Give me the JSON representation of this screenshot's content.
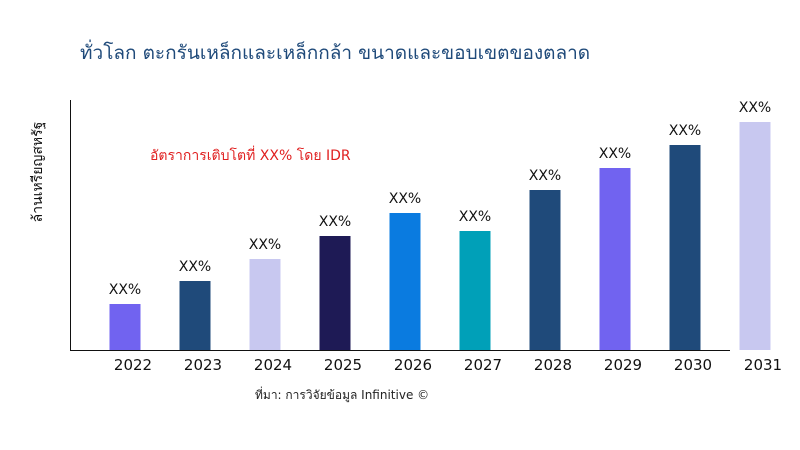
{
  "chart_data": {
    "type": "bar",
    "title": "ทั่วโลก ตะกรันเหล็กและเหล็กกล้า ขนาดและขอบเขตของตลาด",
    "ylabel": "ล้านเหรียญสหรัฐ",
    "xlabel": "",
    "annotation": "อัตราการเติบโตที่ XX% โดย IDR",
    "source": "ที่มา: การวิจัยข้อมูล Infinitive ©",
    "categories": [
      "2022",
      "2023",
      "2024",
      "2025",
      "2026",
      "2027",
      "2028",
      "2029",
      "2030",
      "2031"
    ],
    "values": [
      46,
      69,
      91,
      114,
      137,
      119,
      160,
      182,
      205,
      228
    ],
    "data_labels": [
      "XX%",
      "XX%",
      "XX%",
      "XX%",
      "XX%",
      "XX%",
      "XX%",
      "XX%",
      "XX%",
      "XX%"
    ],
    "colors": [
      "#7163f0",
      "#1f4a7a",
      "#c8c8f0",
      "#1e1a55",
      "#0a7be0",
      "#00a0b8",
      "#1f4a7a",
      "#7163f0",
      "#1f4a7a",
      "#c8c8f0"
    ],
    "ylim": [
      0,
      250
    ],
    "grid": false,
    "y_ticks_shown": false
  }
}
